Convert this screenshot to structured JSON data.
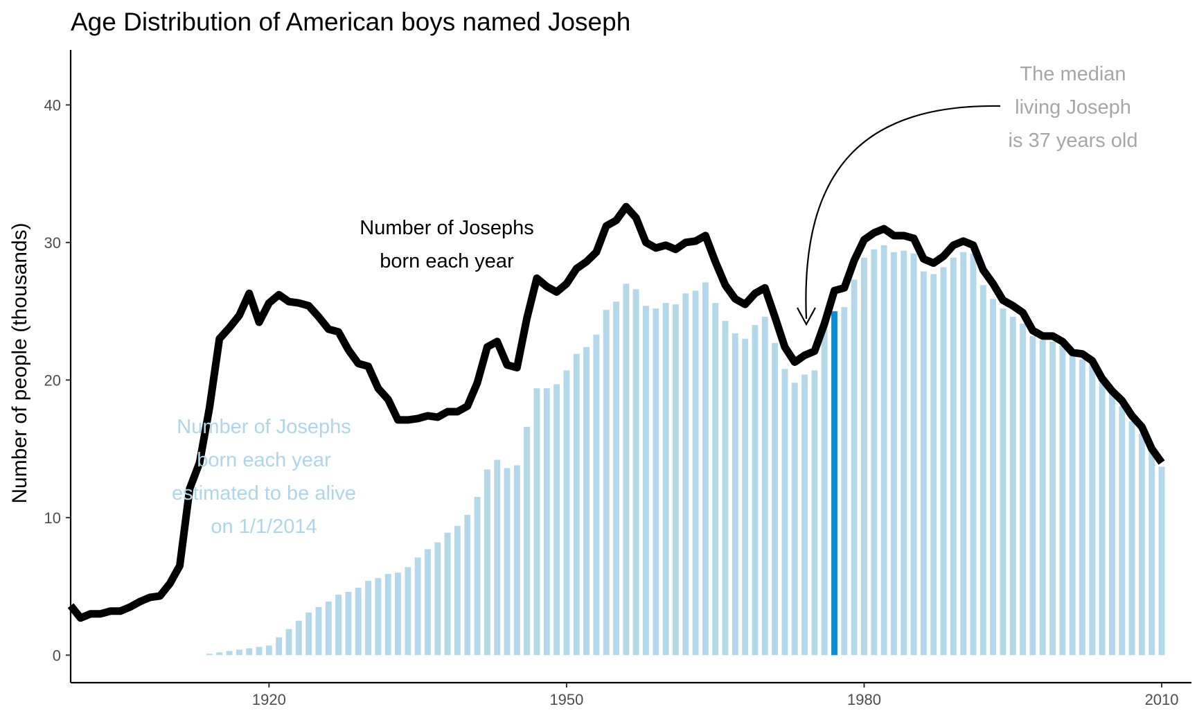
{
  "chart_data": {
    "type": "bar",
    "title": "Age Distribution of American boys named Joseph",
    "xlabel": "",
    "ylabel": "Number of people (thousands)",
    "xlim": [
      1900,
      2013
    ],
    "ylim": [
      -2,
      44
    ],
    "x_ticks": [
      1920,
      1950,
      1980,
      2010
    ],
    "y_ticks": [
      0,
      10,
      20,
      30,
      40
    ],
    "grid": false,
    "colors": {
      "bars": "#b4d8ea",
      "highlight_bar": "#0a8cd2",
      "line": "#000000",
      "alive_annotation": "#aed6ea",
      "median_annotation": "#a6a6a6"
    },
    "highlight_year": 1977,
    "series": [
      {
        "kind": "bar",
        "x": [
          1914,
          1915,
          1916,
          1917,
          1918,
          1919,
          1920,
          1921,
          1922,
          1923,
          1924,
          1925,
          1926,
          1927,
          1928,
          1929,
          1930,
          1931,
          1932,
          1933,
          1934,
          1935,
          1936,
          1937,
          1938,
          1939,
          1940,
          1941,
          1942,
          1943,
          1944,
          1945,
          1946,
          1947,
          1948,
          1949,
          1950,
          1951,
          1952,
          1953,
          1954,
          1955,
          1956,
          1957,
          1958,
          1959,
          1960,
          1961,
          1962,
          1963,
          1964,
          1965,
          1966,
          1967,
          1968,
          1969,
          1970,
          1971,
          1972,
          1973,
          1974,
          1975,
          1976,
          1977,
          1978,
          1979,
          1980,
          1981,
          1982,
          1983,
          1984,
          1985,
          1986,
          1987,
          1988,
          1989,
          1990,
          1991,
          1992,
          1993,
          1994,
          1995,
          1996,
          1997,
          1998,
          1999,
          2000,
          2001,
          2002,
          2003,
          2004,
          2005,
          2006,
          2007,
          2008,
          2009,
          2010
        ],
        "values": [
          0.1,
          0.2,
          0.3,
          0.4,
          0.5,
          0.6,
          0.7,
          1.3,
          1.9,
          2.5,
          3.1,
          3.5,
          3.9,
          4.4,
          4.6,
          4.9,
          5.4,
          5.6,
          5.9,
          6.0,
          6.4,
          7.1,
          7.7,
          8.2,
          8.9,
          9.4,
          10.2,
          11.5,
          13.5,
          14.2,
          13.6,
          13.8,
          16.6,
          19.4,
          19.4,
          19.7,
          20.7,
          21.9,
          22.4,
          23.3,
          25.1,
          25.7,
          27.0,
          26.6,
          25.4,
          25.2,
          25.6,
          25.5,
          26.3,
          26.5,
          27.1,
          25.6,
          24.3,
          23.4,
          23.0,
          24.0,
          24.6,
          22.7,
          20.8,
          19.8,
          20.4,
          20.7,
          24.3,
          25.0,
          25.3,
          27.3,
          28.9,
          29.5,
          29.8,
          29.3,
          29.4,
          29.2,
          27.9,
          27.7,
          28.2,
          28.9,
          29.3,
          29.2,
          26.9,
          25.9,
          25.2,
          24.6,
          24.1,
          23.2,
          22.9,
          22.8,
          22.6,
          21.8,
          21.5,
          21.2,
          20.2,
          19.2,
          18.1,
          17.0,
          16.1,
          14.8,
          13.7
        ]
      },
      {
        "kind": "line",
        "x": [
          1900,
          1901,
          1902,
          1903,
          1904,
          1905,
          1906,
          1907,
          1908,
          1909,
          1910,
          1911,
          1912,
          1913,
          1914,
          1915,
          1916,
          1917,
          1918,
          1919,
          1920,
          1921,
          1922,
          1923,
          1924,
          1925,
          1926,
          1927,
          1928,
          1929,
          1930,
          1931,
          1932,
          1933,
          1934,
          1935,
          1936,
          1937,
          1938,
          1939,
          1940,
          1941,
          1942,
          1943,
          1944,
          1945,
          1946,
          1947,
          1948,
          1949,
          1950,
          1951,
          1952,
          1953,
          1954,
          1955,
          1956,
          1957,
          1958,
          1959,
          1960,
          1961,
          1962,
          1963,
          1964,
          1965,
          1966,
          1967,
          1968,
          1969,
          1970,
          1971,
          1972,
          1973,
          1974,
          1975,
          1976,
          1977,
          1978,
          1979,
          1980,
          1981,
          1982,
          1983,
          1984,
          1985,
          1986,
          1987,
          1988,
          1989,
          1990,
          1991,
          1992,
          1993,
          1994,
          1995,
          1996,
          1997,
          1998,
          1999,
          2000,
          2001,
          2002,
          2003,
          2004,
          2005,
          2006,
          2007,
          2008,
          2009,
          2010
        ],
        "values": [
          3.6,
          2.7,
          3.0,
          3.0,
          3.2,
          3.2,
          3.5,
          3.9,
          4.2,
          4.3,
          5.2,
          6.5,
          12.1,
          14.0,
          18.0,
          23.0,
          23.8,
          24.7,
          26.3,
          24.2,
          25.6,
          26.2,
          25.7,
          25.6,
          25.4,
          24.6,
          23.7,
          23.5,
          22.2,
          21.2,
          21.0,
          19.4,
          18.6,
          17.1,
          17.1,
          17.2,
          17.4,
          17.3,
          17.7,
          17.7,
          18.1,
          19.8,
          22.4,
          22.8,
          21.1,
          20.9,
          24.5,
          27.4,
          26.8,
          26.4,
          27.0,
          28.1,
          28.6,
          29.3,
          31.2,
          31.6,
          32.6,
          31.8,
          30.0,
          29.6,
          29.8,
          29.5,
          30.0,
          30.1,
          30.5,
          28.6,
          26.9,
          25.9,
          25.5,
          26.3,
          26.7,
          24.6,
          22.4,
          21.3,
          21.8,
          22.1,
          24.1,
          26.5,
          26.7,
          28.7,
          30.2,
          30.7,
          31.0,
          30.5,
          30.5,
          30.3,
          28.8,
          28.5,
          29.0,
          29.8,
          30.1,
          29.8,
          28.0,
          27.0,
          25.8,
          25.4,
          24.9,
          23.6,
          23.2,
          23.2,
          22.8,
          22.0,
          21.9,
          21.4,
          20.1,
          19.2,
          18.5,
          17.4,
          16.6,
          15.0,
          14.0
        ]
      }
    ],
    "annotations": {
      "born": [
        "Number of Josephs",
        "born each year"
      ],
      "alive": [
        "Number of Josephs",
        "born each year",
        "estimated to be alive",
        "on 1/1/2014"
      ],
      "median": [
        "The median",
        "living Joseph",
        "is 37 years old"
      ]
    }
  }
}
